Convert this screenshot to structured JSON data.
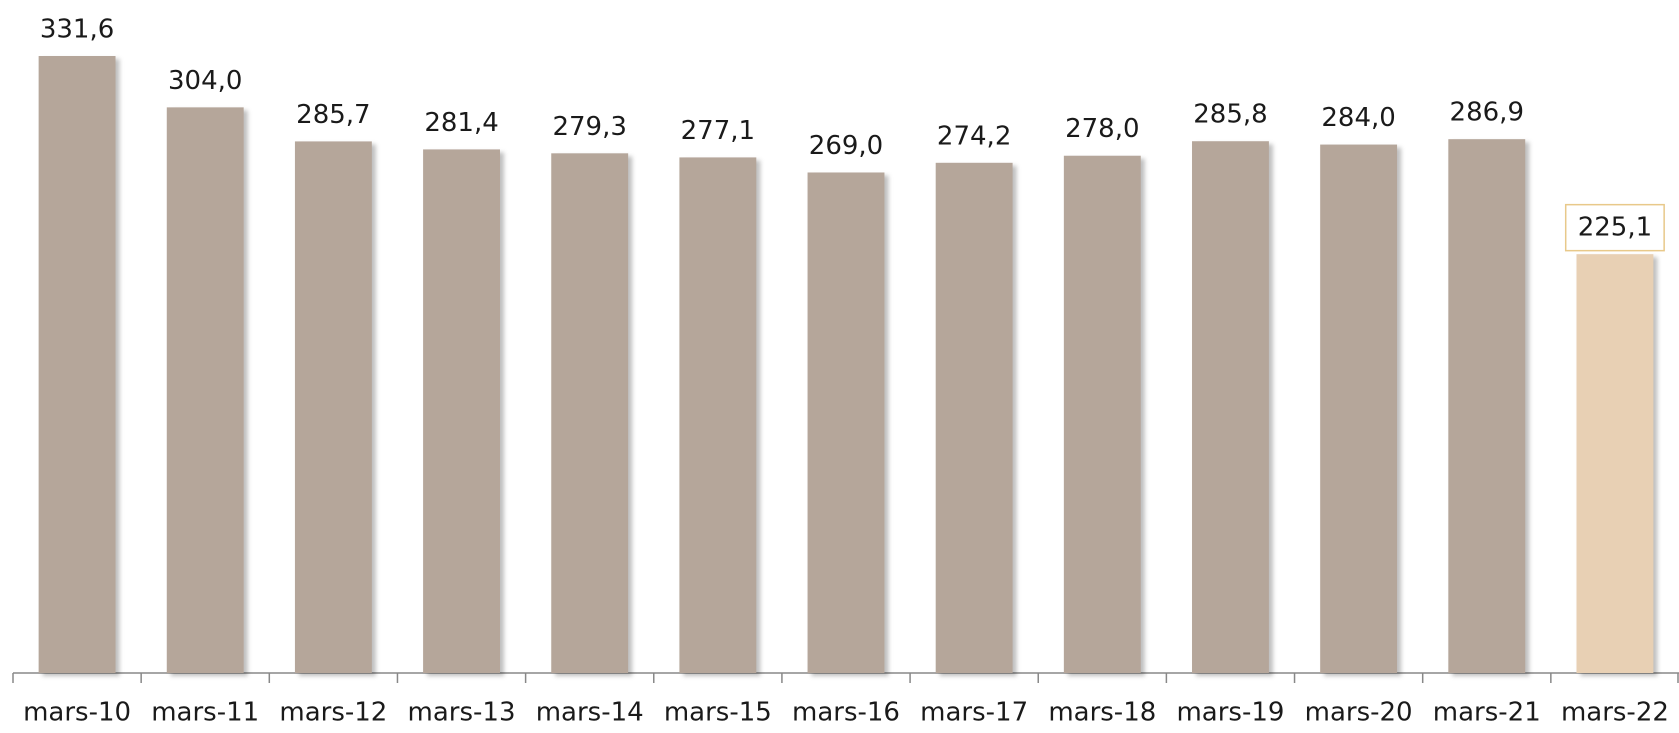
{
  "chart_data": {
    "type": "bar",
    "categories": [
      "mars-10",
      "mars-11",
      "mars-12",
      "mars-13",
      "mars-14",
      "mars-15",
      "mars-16",
      "mars-17",
      "mars-18",
      "mars-19",
      "mars-20",
      "mars-21",
      "mars-22"
    ],
    "values": [
      331.6,
      304.0,
      285.7,
      281.4,
      279.3,
      277.1,
      269.0,
      274.2,
      278.0,
      285.8,
      284.0,
      286.9,
      225.1
    ],
    "value_labels": [
      "331,6",
      "304,0",
      "285,7",
      "281,4",
      "279,3",
      "277,1",
      "269,0",
      "274,2",
      "278,0",
      "285,8",
      "284,0",
      "286,9",
      "225,1"
    ],
    "colors": [
      "#b5a69a",
      "#b5a69a",
      "#b5a69a",
      "#b5a69a",
      "#b5a69a",
      "#b5a69a",
      "#b5a69a",
      "#b5a69a",
      "#b5a69a",
      "#b5a69a",
      "#b5a69a",
      "#b5a69a",
      "#e8d0b4"
    ],
    "highlight_label_border": "#e8c98a"
  }
}
